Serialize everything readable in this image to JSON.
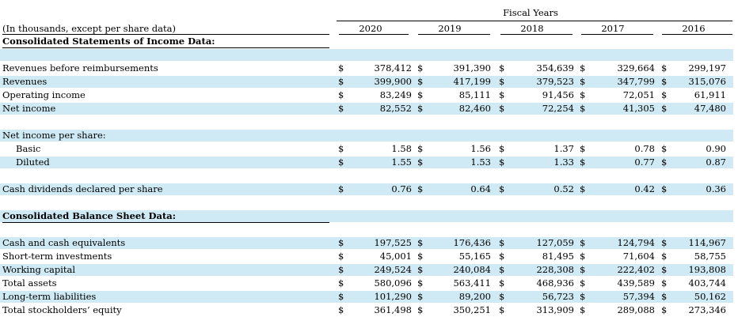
{
  "header": {
    "fiscal_years_label": "Fiscal Years",
    "units_note": "(In thousands, except per share data)",
    "years": [
      "2020",
      "2019",
      "2018",
      "2017",
      "2016"
    ]
  },
  "colors": {
    "band": "#cfeaf4"
  },
  "rows": [
    {
      "type": "section",
      "label": "Consolidated Statements of Income Data:"
    },
    {
      "type": "blank"
    },
    {
      "type": "data",
      "label": "Revenues before reimbursements",
      "values": [
        "378,412",
        "391,390",
        "354,639",
        "329,664",
        "299,197"
      ]
    },
    {
      "type": "data",
      "label": "Revenues",
      "values": [
        "399,900",
        "417,199",
        "379,523",
        "347,799",
        "315,076"
      ]
    },
    {
      "type": "data",
      "label": "Operating income",
      "values": [
        "83,249",
        "85,111",
        "91,456",
        "72,051",
        "61,911"
      ]
    },
    {
      "type": "data",
      "label": "Net income",
      "values": [
        "82,552",
        "82,460",
        "72,254",
        "41,305",
        "47,480"
      ]
    },
    {
      "type": "blank"
    },
    {
      "type": "label",
      "label": "Net income per share:"
    },
    {
      "type": "data",
      "indent": true,
      "label": "Basic",
      "values": [
        "1.58",
        "1.56",
        "1.37",
        "0.78",
        "0.90"
      ]
    },
    {
      "type": "data",
      "indent": true,
      "label": "Diluted",
      "values": [
        "1.55",
        "1.53",
        "1.33",
        "0.77",
        "0.87"
      ]
    },
    {
      "type": "blank"
    },
    {
      "type": "data",
      "label": "Cash dividends declared per share",
      "values": [
        "0.76",
        "0.64",
        "0.52",
        "0.42",
        "0.36"
      ]
    },
    {
      "type": "blank"
    },
    {
      "type": "section",
      "label": "Consolidated Balance Sheet Data:"
    },
    {
      "type": "blank"
    },
    {
      "type": "data",
      "label": "Cash and cash equivalents",
      "values": [
        "197,525",
        "176,436",
        "127,059",
        "124,794",
        "114,967"
      ]
    },
    {
      "type": "data",
      "label": "Short-term investments",
      "values": [
        "45,001",
        "55,165",
        "81,495",
        "71,604",
        "58,755"
      ]
    },
    {
      "type": "data",
      "label": "Working capital",
      "values": [
        "249,524",
        "240,084",
        "228,308",
        "222,402",
        "193,808"
      ]
    },
    {
      "type": "data",
      "label": "Total assets",
      "values": [
        "580,096",
        "563,411",
        "468,936",
        "439,589",
        "403,744"
      ]
    },
    {
      "type": "data",
      "label": "Long-term liabilities",
      "values": [
        "101,290",
        "89,200",
        "56,723",
        "57,394",
        "50,162"
      ]
    },
    {
      "type": "data",
      "label": "Total stockholders’ equity",
      "values": [
        "361,498",
        "350,251",
        "313,909",
        "289,088",
        "273,346"
      ]
    }
  ],
  "currency_symbol": "$"
}
